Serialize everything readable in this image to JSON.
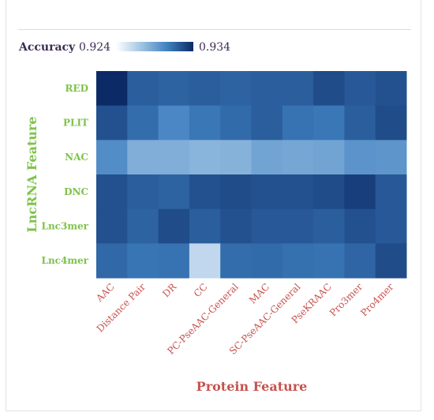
{
  "chart_data": {
    "type": "heatmap",
    "xlabel": "Protein Feature",
    "ylabel": "LncRNA Feature",
    "legend": {
      "title": "Accuracy",
      "min_label": "0.924",
      "max_label": "0.934",
      "placement": "top-left"
    },
    "colorscale": [
      "#ffffff",
      "#9fc3e3",
      "#3f80c0",
      "#0c2a66"
    ],
    "zlim": [
      0.924,
      0.934
    ],
    "x_categories": [
      "AAC",
      "Distance Pair",
      "DR",
      "CC",
      "PC-PseAAC-General",
      "MAC",
      "SC-PseAAC-General",
      "PseKRAAC",
      "Pro3mer",
      "Pro4mer"
    ],
    "y_categories": [
      "RED",
      "PLIT",
      "NAC",
      "DNC",
      "Lnc3mer",
      "Lnc4mer"
    ],
    "values": [
      [
        0.934,
        0.932,
        0.9318,
        0.932,
        0.9318,
        0.932,
        0.932,
        0.9327,
        0.9322,
        0.9325
      ],
      [
        0.9325,
        0.9314,
        0.9303,
        0.931,
        0.9315,
        0.932,
        0.9312,
        0.931,
        0.932,
        0.9327
      ],
      [
        0.93,
        0.9284,
        0.9284,
        0.9281,
        0.9282,
        0.9289,
        0.9288,
        0.9289,
        0.9297,
        0.9296
      ],
      [
        0.9325,
        0.932,
        0.9318,
        0.9325,
        0.9327,
        0.9325,
        0.9325,
        0.9327,
        0.9332,
        0.9322
      ],
      [
        0.9325,
        0.9318,
        0.9327,
        0.932,
        0.9325,
        0.9322,
        0.9322,
        0.932,
        0.9325,
        0.9322
      ],
      [
        0.9316,
        0.9311,
        0.9312,
        0.9262,
        0.9314,
        0.9315,
        0.9313,
        0.9312,
        0.9317,
        0.9327
      ]
    ]
  }
}
